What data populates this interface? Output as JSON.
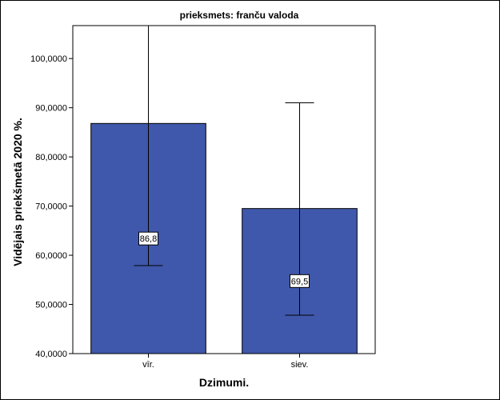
{
  "chart_data": {
    "type": "bar",
    "title": "prieksmets: franču valoda",
    "xlabel": "Dzimumi.",
    "ylabel": "Vidējais priekšmetā 2020 %.",
    "categories": [
      "vīr.",
      "siev."
    ],
    "values": [
      86.8,
      69.5
    ],
    "value_labels": [
      "86,8",
      "69,5"
    ],
    "error_bars": [
      {
        "low": 57.9,
        "high": 106.7
      },
      {
        "low": 47.8,
        "high": 91.0
      }
    ],
    "ylim": [
      40,
      106.7
    ],
    "yticks": [
      40,
      50,
      60,
      70,
      80,
      90,
      100
    ],
    "ytick_labels": [
      "40,0000",
      "50,0000",
      "60,0000",
      "70,0000",
      "80,0000",
      "90,0000",
      "100,0000"
    ],
    "grid": false,
    "bar_color": "#3f58ab",
    "bar_edge_color": "#000000"
  }
}
